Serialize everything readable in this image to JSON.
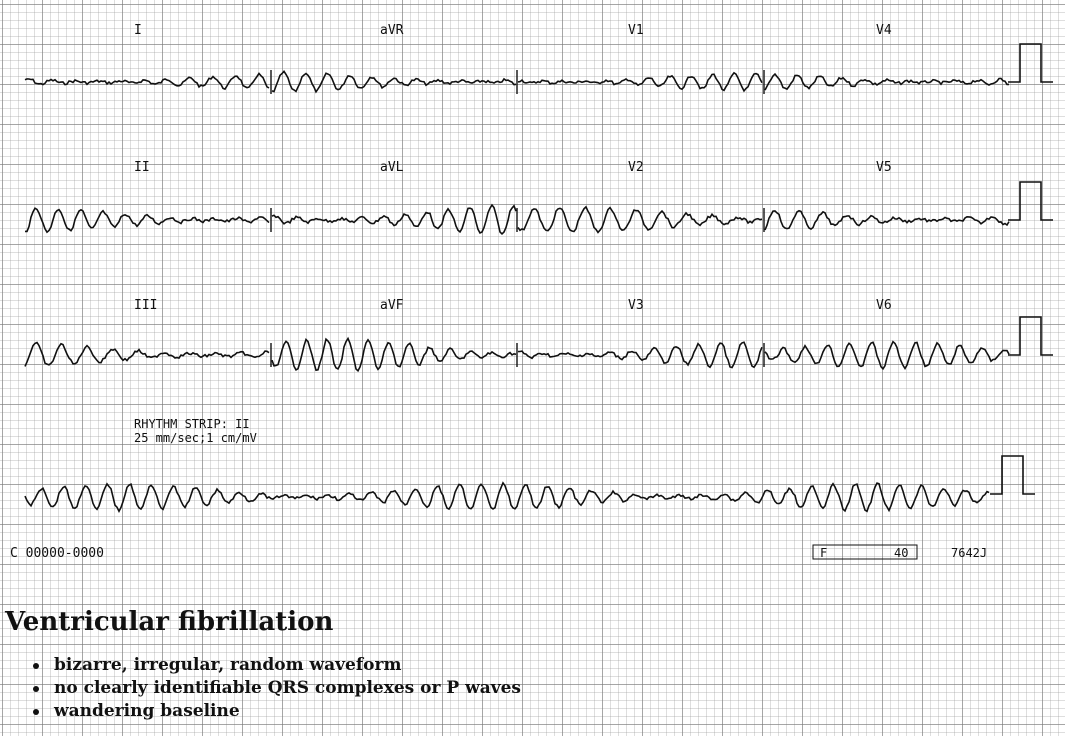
{
  "ecg": {
    "leads_row1": [
      "I",
      "aVR",
      "V1",
      "V4"
    ],
    "leads_row2": [
      "II",
      "aVL",
      "V2",
      "V5"
    ],
    "leads_row3": [
      "III",
      "aVF",
      "V3",
      "V6"
    ],
    "rhythm_strip_label": "RHYTHM STRIP: II",
    "speed_label": "25 mm/sec;1 cm/mV",
    "patient_code": "C 00000-0000",
    "filter_label": "F",
    "filter_value": "40",
    "device_code": "7642J",
    "trace_color": "#111111",
    "grid_color": "#9a9a9a"
  },
  "caption": {
    "title": "Ventricular fibrillation",
    "bullets": [
      "bizarre, irregular, random waveform",
      "no clearly identifiable QRS complexes or P waves",
      "wandering baseline"
    ]
  }
}
